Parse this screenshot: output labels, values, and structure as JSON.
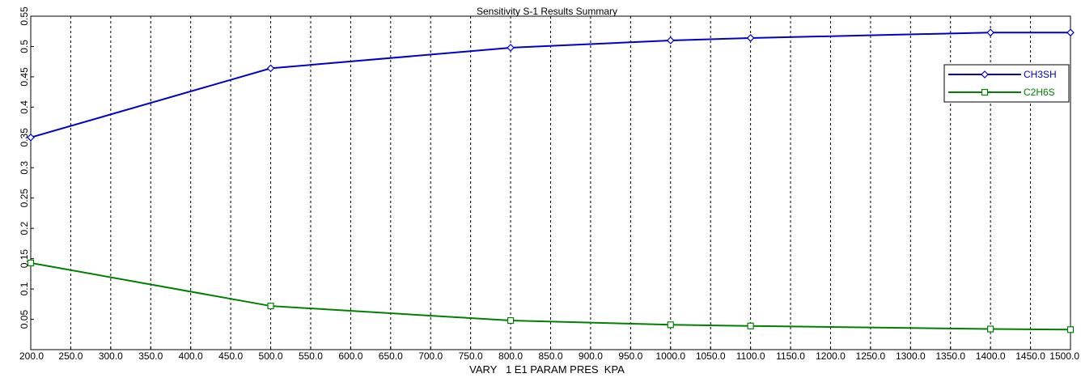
{
  "chart_data": {
    "type": "line",
    "title": "Sensitivity S-1 Results Summary",
    "xlabel": "VARY   1 E1 PARAM PRES  KPA",
    "ylabel": "",
    "xlim": [
      200,
      1500
    ],
    "ylim": [
      0,
      0.55
    ],
    "x_ticks": [
      "200.0",
      "250.0",
      "300.0",
      "350.0",
      "400.0",
      "450.0",
      "500.0",
      "550.0",
      "600.0",
      "650.0",
      "700.0",
      "750.0",
      "800.0",
      "850.0",
      "900.0",
      "950.0",
      "1000.0",
      "1050.0",
      "1100.0",
      "1150.0",
      "1200.0",
      "1250.0",
      "1300.0",
      "1350.0",
      "1400.0",
      "1450.0",
      "1500.0"
    ],
    "y_ticks": [
      "0.05",
      "0.1",
      "0.15",
      "0.2",
      "0.25",
      "0.3",
      "0.35",
      "0.4",
      "0.45",
      "0.5",
      "0.55"
    ],
    "grid": "vertical-dashed",
    "legend_position": "top-right",
    "series": [
      {
        "name": "CH3SH",
        "color": "#0000cc",
        "marker": "diamond",
        "x": [
          200,
          500,
          800,
          1000,
          1100,
          1400,
          1500
        ],
        "y": [
          0.35,
          0.464,
          0.498,
          0.51,
          0.514,
          0.523,
          0.523
        ]
      },
      {
        "name": "C2H6S",
        "color": "#008000",
        "marker": "square",
        "x": [
          200,
          500,
          800,
          1000,
          1100,
          1400,
          1500
        ],
        "y": [
          0.143,
          0.072,
          0.048,
          0.041,
          0.039,
          0.034,
          0.033
        ]
      }
    ]
  }
}
